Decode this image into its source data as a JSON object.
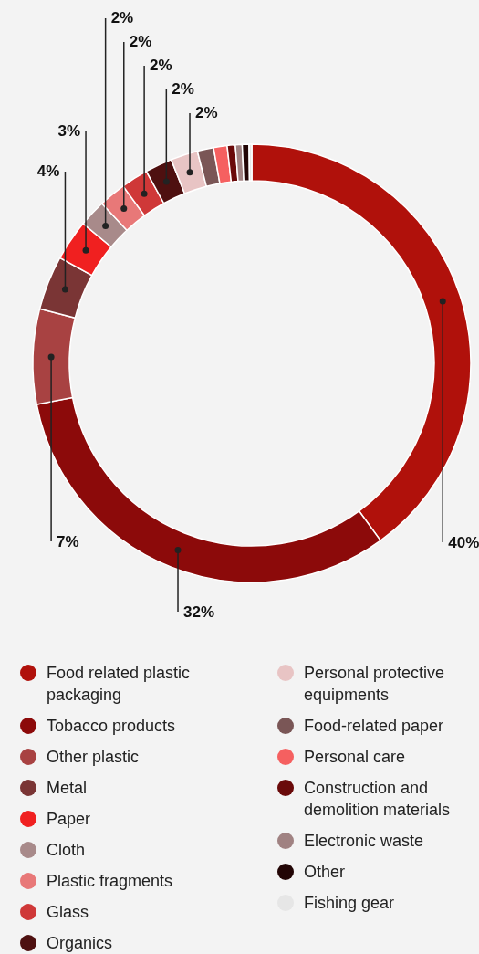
{
  "chart_data": {
    "type": "donut",
    "categories": [
      "Food related plastic packaging",
      "Tobacco products",
      "Other plastic",
      "Metal",
      "Paper",
      "Cloth",
      "Plastic fragments",
      "Glass",
      "Organics",
      "Personal protective equipments",
      "Food-related paper",
      "Personal care",
      "Construction and demolition materials",
      "Electronic waste",
      "Other",
      "Fishing gear"
    ],
    "values": [
      40,
      32,
      7,
      4,
      3,
      2,
      2,
      2,
      2,
      2,
      1.2,
      1,
      0.6,
      0.5,
      0.5,
      0.2
    ],
    "colors": [
      "#b0110b",
      "#8c0a0a",
      "#a84242",
      "#7a3535",
      "#f02020",
      "#a88a8a",
      "#e87878",
      "#cf3838",
      "#4e1010",
      "#e8c4c4",
      "#7a5656",
      "#f56060",
      "#6a0a0a",
      "#a08282",
      "#220505",
      "#e6e6e6"
    ],
    "value_labels": [
      "40%",
      "32%",
      "7%",
      "4%",
      "3%",
      "2%",
      "2%",
      "2%",
      "2%",
      "2%",
      null,
      null,
      null,
      null,
      null,
      null
    ],
    "legend": "bottom"
  }
}
